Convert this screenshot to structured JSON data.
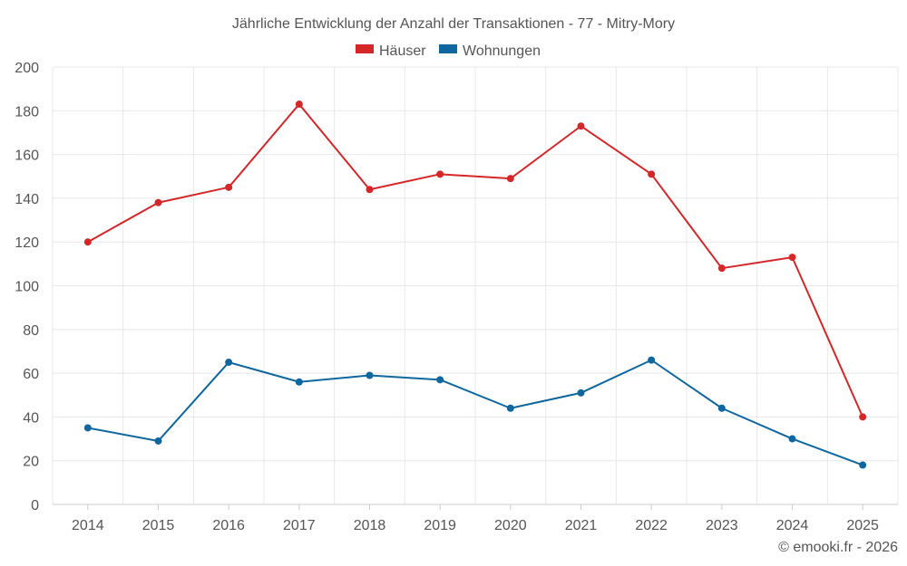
{
  "chart_data": {
    "type": "line",
    "title": "Jährliche Entwicklung der Anzahl der Transaktionen - 77 - Mitry-Mory",
    "categories": [
      "2014",
      "2015",
      "2016",
      "2017",
      "2018",
      "2019",
      "2020",
      "2021",
      "2022",
      "2023",
      "2024",
      "2025"
    ],
    "series": [
      {
        "name": "Häuser",
        "color": "#d62728",
        "values": [
          120,
          138,
          145,
          183,
          144,
          151,
          149,
          173,
          151,
          108,
          113,
          40
        ]
      },
      {
        "name": "Wohnungen",
        "color": "#0f67a0",
        "values": [
          35,
          29,
          65,
          56,
          59,
          57,
          44,
          51,
          66,
          44,
          30,
          18
        ]
      }
    ],
    "ylim": [
      0,
      200
    ],
    "yticks": [
      "0",
      "20",
      "40",
      "60",
      "80",
      "100",
      "120",
      "140",
      "160",
      "180",
      "200"
    ],
    "xlabel": "",
    "ylabel": "",
    "grid": true,
    "legend": "top-center"
  },
  "credit": "© emooki.fr - 2026"
}
